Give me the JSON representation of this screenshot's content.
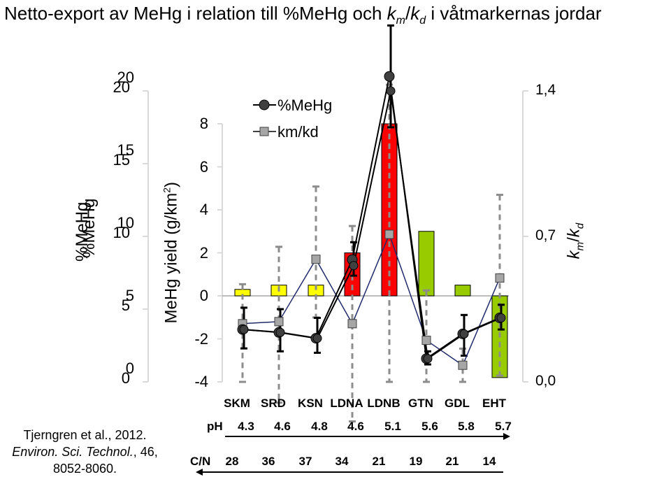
{
  "title": {
    "prefix": "Netto-export av MeHg i relation till %MeHg och ",
    "k1": "k",
    "sub1": "m",
    "slash": "/",
    "k2": "k",
    "sub2": "d",
    "suffix": " i våtmarkernas jordar"
  },
  "chart_data": {
    "type": "bar",
    "categories": [
      "SKM",
      "SRD",
      "KSN",
      "LDNA",
      "LDNB",
      "GTN",
      "GDL",
      "EHT"
    ],
    "left_axis_outer": {
      "label": "%MeHg",
      "ticks": [
        "0",
        "5",
        "10",
        "15",
        "20"
      ],
      "ticks_duplicate": [
        "0",
        "5",
        "10",
        "15",
        "20"
      ],
      "range": [
        0,
        20
      ]
    },
    "left_axis_inner": {
      "label": "MeHg yield (g/km2)",
      "label_main": "MeHg yield (g/km",
      "label_sup": "2",
      "label_end": ")",
      "ticks": [
        "-4",
        "-2",
        "0",
        "2",
        "4",
        "6",
        "8"
      ],
      "range": [
        -4,
        8
      ]
    },
    "right_axis": {
      "label_k1": "k",
      "label_sub1": "m",
      "label_slash": "/",
      "label_k2": "k",
      "label_sub2": "d",
      "ticks": [
        "0,0",
        "0,7",
        "1,4"
      ],
      "range": [
        0,
        1.4
      ]
    },
    "bar_series": {
      "name": "MeHg yield",
      "values": [
        0.3,
        0.5,
        0.5,
        2.0,
        8.0,
        3.0,
        0.5,
        -3.8
      ],
      "colors": [
        "#ffff00",
        "#ffff00",
        "#ffff00",
        "#ff0000",
        "#ff0000",
        "#99cc00",
        "#99cc00",
        "#99cc00"
      ]
    },
    "series": [
      {
        "name": "%MeHg",
        "axis": "left_outer",
        "values": [
          3.6,
          3.4,
          3.0,
          8.4,
          21.0,
          1.6,
          3.3,
          4.4
        ],
        "values_alt": [
          3.6,
          3.4,
          3.0,
          8.0,
          20.0,
          1.6,
          3.3,
          4.4
        ],
        "err_up": [
          1.5,
          1.6,
          1.4,
          1.2,
          3.5,
          0.5,
          1.3,
          0.9
        ],
        "err_down": [
          1.3,
          1.3,
          1.0,
          1.1,
          3.5,
          0.4,
          1.5,
          0.8
        ]
      },
      {
        "name": "km/kd",
        "axis": "right",
        "values": [
          0.28,
          0.29,
          0.59,
          0.28,
          0.71,
          0.2,
          0.08,
          0.5
        ],
        "err_up": [
          0.19,
          0.36,
          0.35,
          0.47,
          0.72,
          0.24,
          0.08,
          0.4
        ],
        "err_down": [
          0.28,
          0.39,
          0.28,
          0.47,
          0.71,
          0.2,
          0.08,
          0.47
        ]
      }
    ],
    "legend": [
      {
        "label": "%MeHg",
        "marker": "circle"
      },
      {
        "label": "km/kd",
        "marker": "square"
      }
    ],
    "rows": {
      "ph": {
        "label": "pH",
        "values": [
          "4.3",
          "4.6",
          "4.8",
          "4.6",
          "5.1",
          "5.6",
          "5.8",
          "5.7"
        ]
      },
      "cn": {
        "label": "C/N",
        "values": [
          "28",
          "36",
          "37",
          "34",
          "21",
          "19",
          "21",
          "14"
        ]
      }
    }
  },
  "citation": {
    "line1": "Tjerngren et al., 2012.",
    "journal": "Environ. Sci. Technol.",
    "line2_rest": ", 46,",
    "line3": "8052-8060."
  },
  "colors": {
    "yellow": "#ffff00",
    "red": "#ff0000",
    "green": "#99cc00",
    "line_dark": "#000000",
    "line_navy": "#1f2a6b",
    "marker_circle": "#404040",
    "marker_square": "#a6a6a6",
    "error_gray": "#8c8c8c"
  }
}
